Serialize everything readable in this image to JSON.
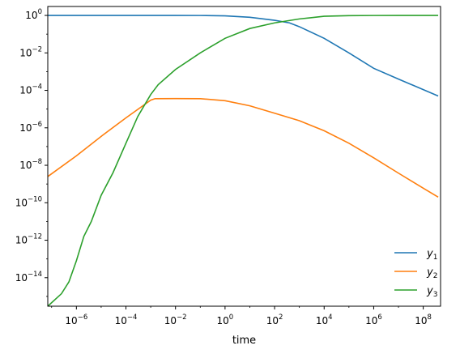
{
  "chart_data": {
    "type": "line",
    "title": "",
    "xlabel": "time",
    "ylabel": "",
    "xscale": "log",
    "yscale": "log",
    "xlim": [
      7e-08,
      500000000.0
    ],
    "ylim": [
      3e-16,
      3
    ],
    "grid": false,
    "legend_position": "lower-right",
    "x_ticks": [
      {
        "value": 1e-06,
        "base": "10",
        "exp": "−6"
      },
      {
        "value": 0.0001,
        "base": "10",
        "exp": "−4"
      },
      {
        "value": 0.01,
        "base": "10",
        "exp": "−2"
      },
      {
        "value": 1,
        "base": "10",
        "exp": "0"
      },
      {
        "value": 100.0,
        "base": "10",
        "exp": "2"
      },
      {
        "value": 10000.0,
        "base": "10",
        "exp": "4"
      },
      {
        "value": 1000000.0,
        "base": "10",
        "exp": "6"
      },
      {
        "value": 100000000.0,
        "base": "10",
        "exp": "8"
      }
    ],
    "y_ticks": [
      {
        "value": 1,
        "base": "10",
        "exp": "0"
      },
      {
        "value": 0.01,
        "base": "10",
        "exp": "−2"
      },
      {
        "value": 0.0001,
        "base": "10",
        "exp": "−4"
      },
      {
        "value": 1e-06,
        "base": "10",
        "exp": "−6"
      },
      {
        "value": 1e-08,
        "base": "10",
        "exp": "−8"
      },
      {
        "value": 1e-10,
        "base": "10",
        "exp": "−10"
      },
      {
        "value": 1e-12,
        "base": "10",
        "exp": "−12"
      },
      {
        "value": 1e-14,
        "base": "10",
        "exp": "−14"
      }
    ],
    "series": [
      {
        "name": "y",
        "subscript": "1",
        "color": "#1f77b4",
        "x": [
          7e-08,
          1e-06,
          0.0001,
          0.01,
          0.1,
          1,
          10,
          100,
          400,
          1000.0,
          10000.0,
          100000.0,
          1000000.0,
          10000000.0,
          400000000.0
        ],
        "y": [
          1,
          1,
          1,
          1,
          0.99,
          0.95,
          0.8,
          0.55,
          0.4,
          0.25,
          0.06,
          0.01,
          0.0015,
          0.0004,
          5e-05
        ]
      },
      {
        "name": "y",
        "subscript": "2",
        "color": "#ff7f0e",
        "x": [
          7e-08,
          1e-06,
          1e-05,
          0.0001,
          0.001,
          0.0015,
          0.01,
          0.1,
          1,
          10,
          100,
          1000.0,
          10000.0,
          100000.0,
          1000000.0,
          10000000.0,
          100000000.0,
          400000000.0
        ],
        "y": [
          2.5e-09,
          3.2e-08,
          3.5e-07,
          3.4e-06,
          3e-05,
          3.6e-05,
          3.65e-05,
          3.6e-05,
          2.8e-05,
          1.5e-05,
          6e-06,
          2.4e-06,
          7e-07,
          1.5e-07,
          2.5e-08,
          3.8e-09,
          6e-10,
          2e-10
        ]
      },
      {
        "name": "y",
        "subscript": "3",
        "color": "#2ca02c",
        "x": [
          7e-08,
          2.5e-07,
          5e-07,
          1e-06,
          2e-06,
          4e-06,
          1e-05,
          3e-05,
          0.0001,
          0.0003,
          0.001,
          0.002,
          0.01,
          0.1,
          1,
          10,
          100,
          1000.0,
          10000.0,
          100000.0,
          1000000.0,
          10000000.0,
          400000000.0
        ],
        "y": [
          3e-16,
          1.4e-15,
          6e-15,
          8e-14,
          1.6e-12,
          1e-11,
          2.5e-10,
          4e-09,
          1.5e-07,
          4e-06,
          6e-05,
          0.0002,
          0.0013,
          0.01,
          0.06,
          0.2,
          0.4,
          0.65,
          0.9,
          0.97,
          0.99,
          1,
          1
        ]
      }
    ]
  }
}
